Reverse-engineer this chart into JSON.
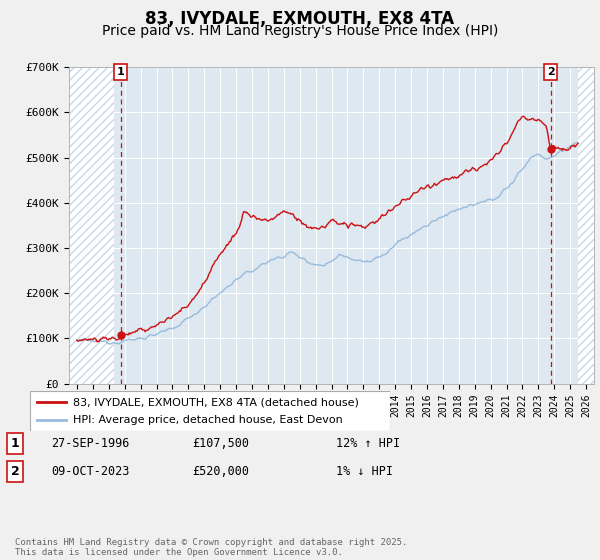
{
  "title": "83, IVYDALE, EXMOUTH, EX8 4TA",
  "subtitle": "Price paid vs. HM Land Registry's House Price Index (HPI)",
  "ylim": [
    0,
    700000
  ],
  "xlim_start": 1993.5,
  "xlim_end": 2026.5,
  "hatch_end": 2025.5,
  "yticks": [
    0,
    100000,
    200000,
    300000,
    400000,
    500000,
    600000,
    700000
  ],
  "ytick_labels": [
    "£0",
    "£100K",
    "£200K",
    "£300K",
    "£400K",
    "£500K",
    "£600K",
    "£700K"
  ],
  "sale1_date": 1996.74,
  "sale1_price": 107500,
  "sale1_label": "1",
  "sale2_date": 2023.77,
  "sale2_price": 520000,
  "sale2_label": "2",
  "hpi_color": "#99bbdd",
  "price_color": "#cc1111",
  "background_color": "#f0f0f0",
  "plot_bg_color": "#dde8f0",
  "grid_color": "#ffffff",
  "hatch_color": "#bbccdd",
  "title_fontsize": 12,
  "subtitle_fontsize": 10,
  "tick_fontsize": 8,
  "legend_label_price": "83, IVYDALE, EXMOUTH, EX8 4TA (detached house)",
  "legend_label_hpi": "HPI: Average price, detached house, East Devon",
  "annotation1_date": "27-SEP-1996",
  "annotation1_price": "£107,500",
  "annotation1_hpi": "12% ↑ HPI",
  "annotation2_date": "09-OCT-2023",
  "annotation2_price": "£520,000",
  "annotation2_hpi": "1% ↓ HPI",
  "footer": "Contains HM Land Registry data © Crown copyright and database right 2025.\nThis data is licensed under the Open Government Licence v3.0."
}
